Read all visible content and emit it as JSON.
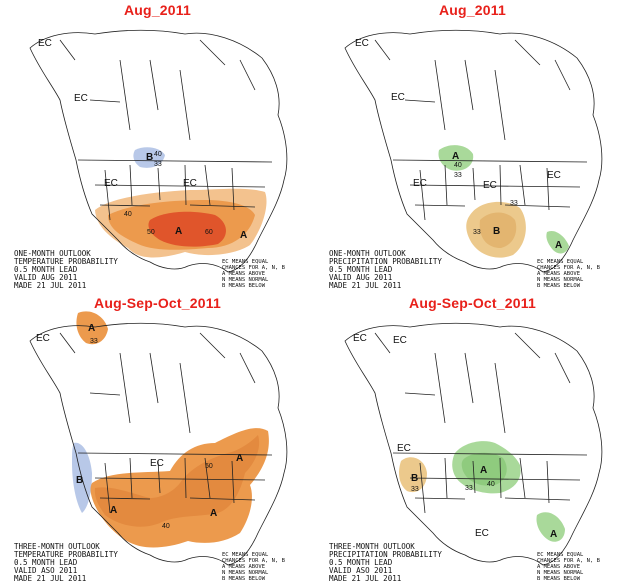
{
  "panels": {
    "top_left": {
      "title": "Aug_2011",
      "caption": [
        "ONE-MONTH OUTLOOK",
        "TEMPERATURE PROBABILITY",
        "0.5 MONTH LEAD",
        "VALID AUG 2011",
        "MADE 21 JUL 2011"
      ],
      "labels": [
        "EC",
        "EC",
        "EC",
        "EC",
        "B",
        "A",
        "A",
        "40",
        "33",
        "40",
        "50",
        "60"
      ]
    },
    "top_right": {
      "title": "Aug_2011",
      "caption": [
        "ONE-MONTH OUTLOOK",
        "PRECIPITATION PROBABILITY",
        "0.5 MONTH LEAD",
        "VALID AUG 2011",
        "MADE 21 JUL 2011"
      ],
      "labels": [
        "EC",
        "EC",
        "EC",
        "EC",
        "EC",
        "A",
        "B",
        "A",
        "40",
        "33",
        "33",
        "33"
      ]
    },
    "bottom_left": {
      "title": "Aug-Sep-Oct_2011",
      "caption": [
        "THREE-MONTH OUTLOOK",
        "TEMPERATURE PROBABILITY",
        "0.5 MONTH LEAD",
        "VALID ASO 2011",
        "MADE 21 JUL 2011"
      ],
      "labels": [
        "A",
        "EC",
        "EC",
        "B",
        "A",
        "A",
        "A",
        "33",
        "40",
        "50"
      ]
    },
    "bottom_right": {
      "title": "Aug-Sep-Oct_2011",
      "caption": [
        "THREE-MONTH OUTLOOK",
        "PRECIPITATION PROBABILITY",
        "0.5 MONTH LEAD",
        "VALID ASO 2011",
        "MADE 21 JUL 2011"
      ],
      "labels": [
        "EC",
        "EC",
        "EC",
        "B",
        "A",
        "A",
        "EC",
        "33",
        "40",
        "33"
      ]
    }
  },
  "legend": [
    "EC MEANS EQUAL",
    "CHANCES FOR A, N, B",
    "A MEANS ABOVE",
    "N MEANS NORMAL",
    "B MEANS BELOW"
  ],
  "colors": {
    "title": "#e8201a",
    "above_temp_light": "#f3c28e",
    "above_temp_mid": "#ec9a4d",
    "above_temp_dark": "#e0552b",
    "below_temp": "#b8c8e8",
    "above_precip": "#a9d99a",
    "below_precip": "#ecc98c"
  }
}
